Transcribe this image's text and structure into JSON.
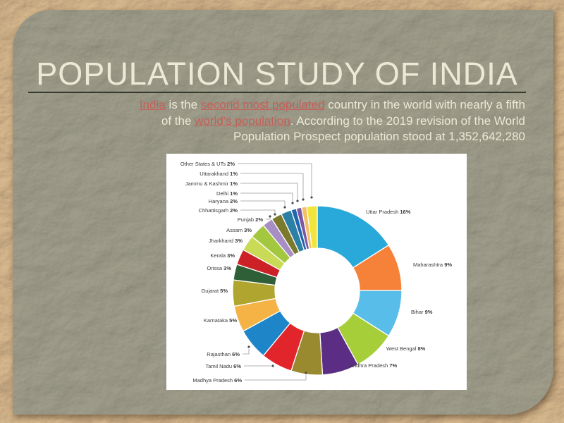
{
  "slide": {
    "title": "POPULATION STUDY OF INDIA",
    "subtitle_lines": [
      [
        {
          "text": "India",
          "link": true
        },
        {
          "text": " is the ",
          "link": false
        },
        {
          "text": "second most populated",
          "link": true
        },
        {
          "text": " country in the world with nearly a fifth",
          "link": false
        }
      ],
      [
        {
          "text": "of the ",
          "link": false
        },
        {
          "text": "world's population",
          "link": true
        },
        {
          "text": ". According to the 2019 revision of the World",
          "link": false
        }
      ],
      [
        {
          "text": "Population Prospect population stood at 1,352,642,280",
          "link": false
        }
      ]
    ],
    "population_value": "1,352,642,280",
    "colors": {
      "background": "#b6946a",
      "panel": "#8d8a78",
      "title_text": "#ece9d6",
      "body_text": "#ece9d6",
      "link": "#c4605a",
      "underline": "#262a1e"
    }
  },
  "chart_data": {
    "type": "pie",
    "subtype": "donut",
    "donut_hole_ratio": 0.5,
    "direction": "clockwise",
    "start_angle_deg": 0,
    "background": "#ffffff",
    "label_format": "{name} {value}%",
    "categories": [
      "Uttar Pradesh",
      "Maharashtra",
      "Bihar",
      "West Bengal",
      "Andhra Pradesh",
      "Madhya Pradesh",
      "Tamil Nadu",
      "Rajasthan",
      "Karnataka",
      "Gujarat",
      "Orissa",
      "Kerala",
      "Jharkhand",
      "Assam",
      "Punjab",
      "Chhattisgarh",
      "Haryana",
      "Delhi",
      "Jammu & Kashmir",
      "Uttarakhand",
      "Other States & UTs"
    ],
    "values": [
      16,
      9,
      9,
      8,
      7,
      6,
      6,
      6,
      5,
      5,
      3,
      3,
      3,
      3,
      2,
      2,
      2,
      1,
      1,
      1,
      2
    ],
    "colors": [
      "#29a8da",
      "#f58238",
      "#58bee9",
      "#a6ce39",
      "#5b2d84",
      "#99892f",
      "#e2242b",
      "#1e86c8",
      "#f4b344",
      "#b0a52f",
      "#2e5f36",
      "#cb2127",
      "#c9db56",
      "#a3c83f",
      "#a78fc5",
      "#7b7a2c",
      "#2c80a5",
      "#2366b0",
      "#7a58a3",
      "#f4c065",
      "#f1e53c"
    ],
    "label_color": "#3c3c3c",
    "leader_line_color": "#9a9a9a"
  }
}
